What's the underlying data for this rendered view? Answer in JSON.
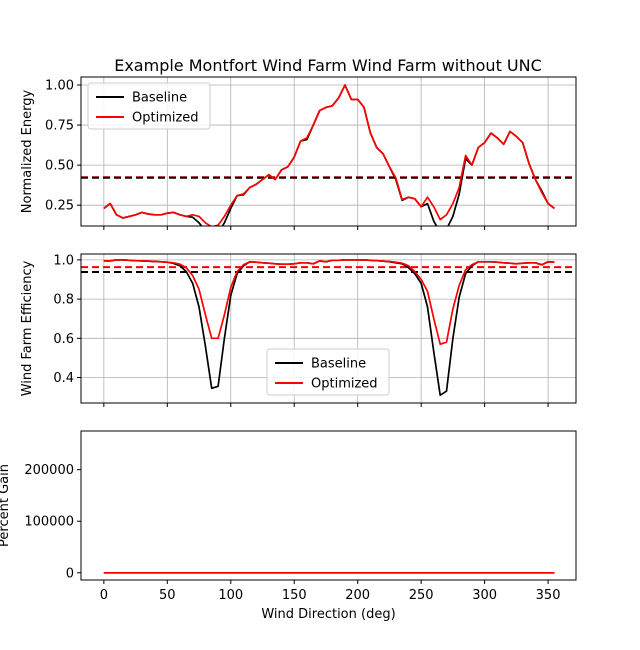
{
  "title": "Example Montfort Wind Farm Wind Farm without UNC",
  "chart_data": [
    {
      "type": "line",
      "ylabel": "Normalized Energy",
      "xlim": [
        -18,
        372
      ],
      "ylim": [
        0.12,
        1.05
      ],
      "yticks": [
        "0.25",
        "0.50",
        "0.75",
        "1.00"
      ],
      "ytick_values": [
        0.25,
        0.5,
        0.75,
        1.0
      ],
      "grid": true,
      "legend": {
        "position": "top-left"
      },
      "hlines": [
        {
          "y": 0.424,
          "color": "#ff0000",
          "style": "dashed"
        },
        {
          "y": 0.421,
          "color": "#000000",
          "style": "dashed"
        }
      ],
      "series": [
        {
          "name": "Baseline",
          "color": "#000000",
          "x": [
            0,
            5,
            10,
            15,
            20,
            25,
            30,
            35,
            40,
            45,
            50,
            55,
            60,
            65,
            70,
            75,
            80,
            85,
            90,
            95,
            100,
            105,
            110,
            115,
            120,
            125,
            130,
            135,
            140,
            145,
            150,
            155,
            160,
            165,
            170,
            175,
            180,
            185,
            190,
            195,
            200,
            205,
            210,
            215,
            220,
            225,
            230,
            235,
            240,
            245,
            250,
            255,
            260,
            265,
            270,
            275,
            280,
            285,
            290,
            295,
            300,
            305,
            310,
            315,
            320,
            325,
            330,
            335,
            340,
            345,
            350,
            355
          ],
          "y": [
            0.23,
            0.26,
            0.19,
            0.17,
            0.18,
            0.19,
            0.205,
            0.195,
            0.19,
            0.19,
            0.2,
            0.205,
            0.19,
            0.18,
            0.175,
            0.14,
            0.09,
            0.065,
            0.075,
            0.14,
            0.23,
            0.31,
            0.315,
            0.36,
            0.38,
            0.41,
            0.44,
            0.41,
            0.47,
            0.49,
            0.55,
            0.65,
            0.66,
            0.75,
            0.84,
            0.86,
            0.87,
            0.92,
            1.0,
            0.91,
            0.91,
            0.86,
            0.7,
            0.61,
            0.57,
            0.49,
            0.41,
            0.28,
            0.3,
            0.29,
            0.24,
            0.26,
            0.15,
            0.08,
            0.1,
            0.18,
            0.32,
            0.54,
            0.5,
            0.61,
            0.64,
            0.7,
            0.67,
            0.63,
            0.71,
            0.68,
            0.64,
            0.51,
            0.41,
            0.34,
            0.26,
            0.23
          ]
        },
        {
          "name": "Optimized",
          "color": "#ff0000",
          "x": [
            0,
            5,
            10,
            15,
            20,
            25,
            30,
            35,
            40,
            45,
            50,
            55,
            60,
            65,
            70,
            75,
            80,
            85,
            90,
            95,
            100,
            105,
            110,
            115,
            120,
            125,
            130,
            135,
            140,
            145,
            150,
            155,
            160,
            165,
            170,
            175,
            180,
            185,
            190,
            195,
            200,
            205,
            210,
            215,
            220,
            225,
            230,
            235,
            240,
            245,
            250,
            255,
            260,
            265,
            270,
            275,
            280,
            285,
            290,
            295,
            300,
            305,
            310,
            315,
            320,
            325,
            330,
            335,
            340,
            345,
            350,
            355
          ],
          "y": [
            0.23,
            0.26,
            0.19,
            0.17,
            0.18,
            0.19,
            0.205,
            0.195,
            0.19,
            0.19,
            0.2,
            0.205,
            0.19,
            0.18,
            0.19,
            0.18,
            0.14,
            0.115,
            0.125,
            0.18,
            0.25,
            0.31,
            0.32,
            0.36,
            0.38,
            0.41,
            0.44,
            0.41,
            0.47,
            0.49,
            0.55,
            0.65,
            0.67,
            0.75,
            0.84,
            0.86,
            0.87,
            0.92,
            1.0,
            0.91,
            0.91,
            0.86,
            0.7,
            0.61,
            0.57,
            0.49,
            0.42,
            0.285,
            0.3,
            0.29,
            0.24,
            0.3,
            0.24,
            0.16,
            0.19,
            0.26,
            0.36,
            0.56,
            0.5,
            0.61,
            0.64,
            0.7,
            0.67,
            0.63,
            0.71,
            0.68,
            0.64,
            0.51,
            0.41,
            0.33,
            0.26,
            0.23
          ]
        }
      ]
    },
    {
      "type": "line",
      "ylabel": "Wind Farm Efficiency",
      "xlim": [
        -18,
        372
      ],
      "ylim": [
        0.27,
        1.03
      ],
      "yticks": [
        "0.4",
        "0.6",
        "0.8",
        "1.0"
      ],
      "ytick_values": [
        0.4,
        0.6,
        0.8,
        1.0
      ],
      "grid": true,
      "legend": {
        "position": "lower-center"
      },
      "hlines": [
        {
          "y": 0.963,
          "color": "#ff0000",
          "style": "dashed"
        },
        {
          "y": 0.938,
          "color": "#000000",
          "style": "dashed"
        }
      ],
      "series": [
        {
          "name": "Baseline",
          "color": "#000000",
          "x": [
            0,
            5,
            10,
            15,
            20,
            25,
            30,
            35,
            40,
            45,
            50,
            55,
            60,
            65,
            70,
            75,
            80,
            85,
            90,
            95,
            100,
            105,
            110,
            115,
            120,
            125,
            130,
            135,
            140,
            145,
            150,
            155,
            160,
            165,
            170,
            175,
            180,
            185,
            190,
            195,
            200,
            205,
            210,
            215,
            220,
            225,
            230,
            235,
            240,
            245,
            250,
            255,
            260,
            265,
            270,
            275,
            280,
            285,
            290,
            295,
            300,
            305,
            310,
            315,
            320,
            325,
            330,
            335,
            340,
            345,
            350,
            355
          ],
          "y": [
            0.995,
            0.995,
            1.0,
            1.0,
            0.998,
            0.996,
            0.995,
            0.994,
            0.992,
            0.99,
            0.988,
            0.982,
            0.97,
            0.94,
            0.88,
            0.76,
            0.56,
            0.345,
            0.355,
            0.6,
            0.82,
            0.93,
            0.97,
            0.99,
            0.988,
            0.985,
            0.983,
            0.98,
            0.978,
            0.978,
            0.98,
            0.985,
            0.985,
            0.98,
            0.995,
            0.99,
            0.998,
            0.998,
            1.0,
            1.0,
            1.0,
            1.0,
            0.998,
            0.996,
            0.994,
            0.99,
            0.985,
            0.98,
            0.96,
            0.93,
            0.88,
            0.76,
            0.53,
            0.31,
            0.33,
            0.6,
            0.81,
            0.93,
            0.97,
            0.99,
            0.99,
            0.99,
            0.988,
            0.985,
            0.983,
            0.98,
            0.983,
            0.985,
            0.985,
            0.975,
            0.99,
            0.988
          ]
        },
        {
          "name": "Optimized",
          "color": "#ff0000",
          "x": [
            0,
            5,
            10,
            15,
            20,
            25,
            30,
            35,
            40,
            45,
            50,
            55,
            60,
            65,
            70,
            75,
            80,
            85,
            90,
            95,
            100,
            105,
            110,
            115,
            120,
            125,
            130,
            135,
            140,
            145,
            150,
            155,
            160,
            165,
            170,
            175,
            180,
            185,
            190,
            195,
            200,
            205,
            210,
            215,
            220,
            225,
            230,
            235,
            240,
            245,
            250,
            255,
            260,
            265,
            270,
            275,
            280,
            285,
            290,
            295,
            300,
            305,
            310,
            315,
            320,
            325,
            330,
            335,
            340,
            345,
            350,
            355
          ],
          "y": [
            0.995,
            0.995,
            1.0,
            1.0,
            0.998,
            0.996,
            0.995,
            0.994,
            0.992,
            0.99,
            0.988,
            0.985,
            0.978,
            0.96,
            0.92,
            0.85,
            0.72,
            0.6,
            0.6,
            0.72,
            0.86,
            0.94,
            0.975,
            0.99,
            0.988,
            0.985,
            0.983,
            0.98,
            0.978,
            0.978,
            0.98,
            0.985,
            0.985,
            0.98,
            0.995,
            0.99,
            0.998,
            0.998,
            1.0,
            1.0,
            1.0,
            1.0,
            0.998,
            0.996,
            0.994,
            0.992,
            0.988,
            0.983,
            0.97,
            0.94,
            0.9,
            0.84,
            0.7,
            0.57,
            0.58,
            0.75,
            0.87,
            0.95,
            0.975,
            0.99,
            0.99,
            0.99,
            0.988,
            0.985,
            0.983,
            0.98,
            0.983,
            0.985,
            0.985,
            0.975,
            0.99,
            0.988
          ]
        }
      ]
    },
    {
      "type": "line",
      "ylabel": "Percent Gain",
      "xlabel": "Wind Direction (deg)",
      "xlim": [
        -18,
        372
      ],
      "ylim": [
        -14000,
        275000
      ],
      "xticks": [
        "0",
        "50",
        "100",
        "150",
        "200",
        "250",
        "300",
        "350"
      ],
      "xtick_values": [
        0,
        50,
        100,
        150,
        200,
        250,
        300,
        350
      ],
      "yticks": [
        "0",
        "100000",
        "200000"
      ],
      "ytick_values": [
        0,
        100000,
        200000
      ],
      "grid": false,
      "series": [
        {
          "color": "#000000",
          "x": [
            0,
            355
          ],
          "y": [
            0,
            0
          ]
        },
        {
          "color": "#ff0000",
          "x": [
            0,
            355
          ],
          "y": [
            0,
            0
          ]
        }
      ]
    }
  ]
}
